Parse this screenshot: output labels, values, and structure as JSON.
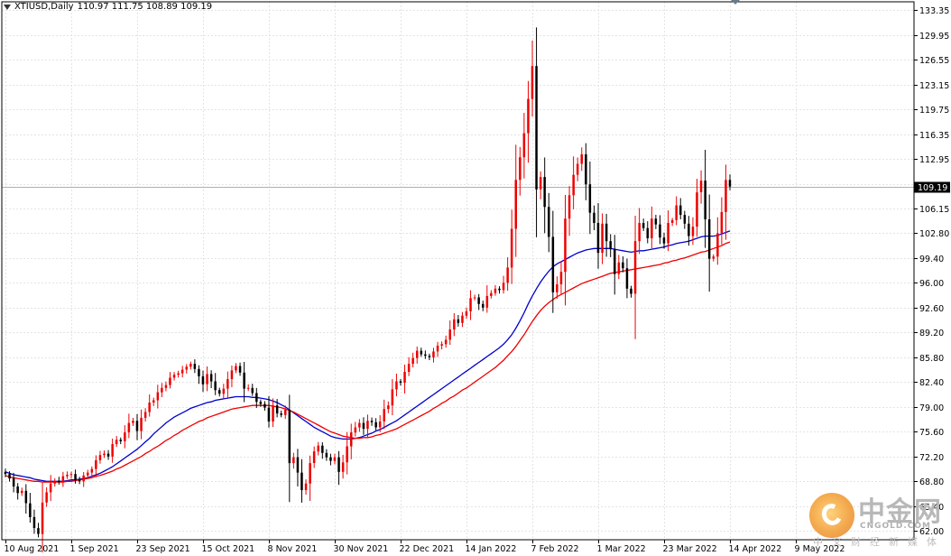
{
  "header": {
    "symbol": "XTIUSD,Daily",
    "ohlc": "110.97 111.75 108.89 109.19"
  },
  "watermark": {
    "name": "中金网",
    "url": "CNGOLD.COM",
    "subtitle": "中文财经新媒体"
  },
  "chart_data": {
    "type": "candlestick",
    "title": "XTIUSD,Daily",
    "ylim": [
      60.8,
      134.5
    ],
    "y_ticks": [
      133.35,
      129.95,
      126.55,
      123.15,
      119.75,
      116.35,
      112.95,
      109.55,
      106.15,
      102.8,
      99.4,
      96.0,
      92.6,
      89.2,
      85.8,
      82.4,
      79.0,
      75.6,
      72.2,
      68.8,
      65.4,
      62.0
    ],
    "y_tick_labels": [
      "133.35",
      "129.95",
      "126.55",
      "123.15",
      "119.75",
      "116.35",
      "112.95",
      "",
      "106.15",
      "102.80",
      "99.40",
      "96.00",
      "92.60",
      "89.20",
      "85.80",
      "82.40",
      "79.00",
      "75.60",
      "72.20",
      "68.80",
      "65.40",
      "62.00"
    ],
    "current_price": 109.19,
    "current_price_label": "109.19",
    "x_tick_labels": [
      {
        "label": "10 Aug 2021",
        "bar": 0
      },
      {
        "label": "1 Sep 2021",
        "bar": 16
      },
      {
        "label": "23 Sep 2021",
        "bar": 32
      },
      {
        "label": "15 Oct 2021",
        "bar": 48
      },
      {
        "label": "8 Nov 2021",
        "bar": 64
      },
      {
        "label": "30 Nov 2021",
        "bar": 80
      },
      {
        "label": "22 Dec 2021",
        "bar": 96
      },
      {
        "label": "14 Jan 2022",
        "bar": 112
      },
      {
        "label": "7 Feb 2022",
        "bar": 128
      },
      {
        "label": "1 Mar 2022",
        "bar": 144
      },
      {
        "label": "23 Mar 2022",
        "bar": 160
      },
      {
        "label": "14 Apr 2022",
        "bar": 176
      },
      {
        "label": "9 May 2022",
        "bar": 192
      }
    ],
    "closes": [
      69.8,
      69.2,
      68.1,
      67.2,
      67.5,
      65.8,
      63.9,
      62.4,
      61.6,
      65.9,
      67.3,
      68.5,
      68.9,
      68.7,
      69.5,
      69.7,
      69.8,
      69.0,
      68.8,
      69.6,
      70.0,
      70.5,
      71.7,
      72.4,
      72.6,
      72.2,
      73.9,
      74.5,
      74.3,
      75.5,
      76.8,
      77.1,
      75.7,
      77.5,
      78.3,
      79.6,
      79.9,
      81.0,
      81.6,
      82.0,
      83.0,
      83.4,
      83.6,
      84.1,
      84.5,
      84.9,
      84.2,
      83.2,
      82.1,
      83.5,
      82.5,
      81.3,
      80.8,
      81.5,
      82.8,
      84.0,
      84.6,
      83.7,
      81.5,
      81.6,
      80.9,
      79.7,
      79.4,
      78.9,
      77.0,
      79.2,
      78.1,
      77.9,
      78.6,
      71.3,
      72.1,
      70.0,
      67.6,
      68.5,
      71.3,
      72.9,
      73.7,
      72.7,
      72.1,
      71.6,
      72.1,
      70.1,
      71.4,
      73.6,
      75.5,
      76.2,
      76.8,
      76.0,
      77.1,
      76.9,
      76.2,
      77.0,
      78.7,
      79.2,
      81.4,
      82.5,
      82.3,
      83.8,
      84.9,
      85.7,
      86.7,
      86.2,
      86.0,
      85.8,
      86.6,
      87.4,
      87.6,
      88.2,
      89.6,
      91.0,
      90.5,
      91.5,
      92.1,
      93.9,
      94.0,
      93.1,
      92.6,
      94.2,
      94.6,
      95.2,
      95.0,
      96.0,
      98.1,
      103.4,
      110.1,
      113.2,
      116.5,
      121.2,
      125.7,
      108.8,
      110.5,
      106.4,
      102.3,
      94.7,
      95.8,
      97.5,
      104.8,
      108.0,
      110.8,
      112.3,
      113.6,
      109.5,
      105.6,
      104.2,
      100.1,
      104.1,
      101.7,
      100.6,
      97.2,
      98.8,
      98.0,
      95.2,
      94.5,
      101.7,
      104.2,
      103.5,
      102.1,
      104.8,
      104.0,
      102.2,
      101.4,
      104.2,
      104.6,
      106.6,
      105.3,
      104.1,
      102.4,
      103.7,
      108.4,
      110.0,
      104.7,
      99.3,
      99.6,
      102.8,
      105.7,
      110.1,
      109.19
    ],
    "series": [
      {
        "name": "",
        "color": "#0000cc",
        "values": [
          70.1,
          69.9,
          69.7,
          69.6,
          69.5,
          69.4,
          69.3,
          69.1,
          69.0,
          68.9,
          68.8,
          68.8,
          68.8,
          68.8,
          68.8,
          68.9,
          69.0,
          69.0,
          69.1,
          69.2,
          69.3,
          69.5,
          69.7,
          69.9,
          70.2,
          70.5,
          70.8,
          71.2,
          71.6,
          72.0,
          72.4,
          72.8,
          73.2,
          73.7,
          74.2,
          74.7,
          75.3,
          75.8,
          76.3,
          76.8,
          77.2,
          77.6,
          77.9,
          78.2,
          78.5,
          78.8,
          79.0,
          79.2,
          79.4,
          79.6,
          79.7,
          79.9,
          80.0,
          80.1,
          80.2,
          80.3,
          80.4,
          80.4,
          80.4,
          80.4,
          80.3,
          80.3,
          80.2,
          80.1,
          80.0,
          79.8,
          79.6,
          79.3,
          79.0,
          78.6,
          78.2,
          77.8,
          77.4,
          77.0,
          76.6,
          76.2,
          75.9,
          75.6,
          75.3,
          75.0,
          74.8,
          74.7,
          74.6,
          74.6,
          74.6,
          74.7,
          74.8,
          75.0,
          75.2,
          75.4,
          75.7,
          75.9,
          76.2,
          76.5,
          76.8,
          77.1,
          77.5,
          77.9,
          78.3,
          78.7,
          79.1,
          79.5,
          79.9,
          80.3,
          80.7,
          81.1,
          81.5,
          81.9,
          82.3,
          82.7,
          83.1,
          83.5,
          83.9,
          84.3,
          84.7,
          85.1,
          85.5,
          85.9,
          86.3,
          86.7,
          87.1,
          87.6,
          88.2,
          88.9,
          89.8,
          90.8,
          91.9,
          93.1,
          94.2,
          95.2,
          96.1,
          96.9,
          97.6,
          98.2,
          98.6,
          98.9,
          99.2,
          99.5,
          99.8,
          100.1,
          100.3,
          100.5,
          100.6,
          100.7,
          100.7,
          100.7,
          100.7,
          100.7,
          100.6,
          100.5,
          100.4,
          100.3,
          100.2,
          100.3,
          100.4,
          100.4,
          100.5,
          100.6,
          100.7,
          100.8,
          100.9,
          101.1,
          101.2,
          101.4,
          101.5,
          101.6,
          101.7,
          101.9,
          102.1,
          102.3,
          102.4,
          102.4,
          102.4,
          102.5,
          102.7,
          102.9,
          103.1
        ]
      },
      {
        "name": "",
        "color": "#ee0000",
        "values": [
          69.6,
          69.4,
          69.3,
          69.2,
          69.1,
          69.0,
          68.9,
          68.8,
          68.8,
          68.7,
          68.7,
          68.7,
          68.7,
          68.7,
          68.7,
          68.8,
          68.8,
          68.9,
          69.0,
          69.1,
          69.2,
          69.3,
          69.5,
          69.6,
          69.8,
          70.0,
          70.2,
          70.5,
          70.7,
          71.0,
          71.3,
          71.6,
          71.9,
          72.2,
          72.6,
          72.9,
          73.3,
          73.6,
          74.0,
          74.4,
          74.7,
          75.1,
          75.4,
          75.8,
          76.1,
          76.4,
          76.7,
          77.0,
          77.2,
          77.5,
          77.7,
          77.9,
          78.1,
          78.3,
          78.5,
          78.7,
          78.8,
          78.9,
          79.0,
          79.1,
          79.2,
          79.2,
          79.2,
          79.2,
          79.2,
          79.1,
          79.0,
          78.9,
          78.7,
          78.5,
          78.3,
          78.0,
          77.7,
          77.4,
          77.1,
          76.8,
          76.5,
          76.2,
          75.9,
          75.6,
          75.4,
          75.2,
          75.0,
          74.9,
          74.8,
          74.7,
          74.7,
          74.8,
          74.8,
          74.9,
          75.1,
          75.2,
          75.4,
          75.6,
          75.8,
          76.0,
          76.3,
          76.6,
          76.9,
          77.2,
          77.5,
          77.8,
          78.1,
          78.4,
          78.8,
          79.1,
          79.5,
          79.8,
          80.2,
          80.5,
          80.9,
          81.3,
          81.6,
          82.0,
          82.4,
          82.8,
          83.2,
          83.6,
          84.0,
          84.4,
          84.9,
          85.4,
          86.0,
          86.6,
          87.3,
          88.1,
          88.9,
          89.8,
          90.7,
          91.5,
          92.2,
          92.8,
          93.3,
          93.7,
          94.1,
          94.4,
          94.7,
          95.0,
          95.3,
          95.6,
          95.9,
          96.1,
          96.3,
          96.5,
          96.7,
          96.9,
          97.1,
          97.3,
          97.4,
          97.5,
          97.6,
          97.7,
          97.8,
          97.9,
          98.0,
          98.1,
          98.2,
          98.3,
          98.4,
          98.5,
          98.7,
          98.8,
          99.0,
          99.1,
          99.3,
          99.4,
          99.6,
          99.8,
          100.0,
          100.2,
          100.3,
          100.5,
          100.7,
          100.9,
          101.1,
          101.4,
          101.6
        ]
      }
    ]
  }
}
